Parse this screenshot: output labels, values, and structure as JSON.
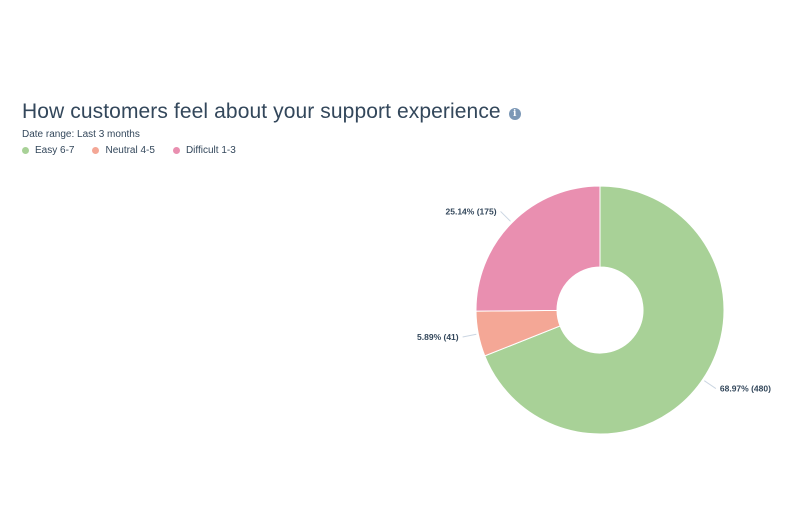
{
  "header": {
    "title": "How customers feel about your support experience",
    "info_icon": "info-icon",
    "date_range": "Date range: Last 3 months"
  },
  "legend": [
    {
      "label": "Easy 6-7",
      "color": "#a8d197"
    },
    {
      "label": "Neutral 4-5",
      "color": "#f4a796"
    },
    {
      "label": "Difficult 1-3",
      "color": "#e98fb0"
    }
  ],
  "chart_data": {
    "type": "pie",
    "donut": true,
    "title": "How customers feel about your support experience",
    "categories": [
      "Easy 6-7",
      "Neutral 4-5",
      "Difficult 1-3"
    ],
    "values": [
      480,
      41,
      175
    ],
    "percentages": [
      68.97,
      5.89,
      25.14
    ],
    "colors": [
      "#a8d197",
      "#f4a796",
      "#e98fb0"
    ],
    "data_labels": [
      "68.97% (480)",
      "5.89% (41)",
      "25.14% (175)"
    ],
    "legend_position": "top-left"
  }
}
